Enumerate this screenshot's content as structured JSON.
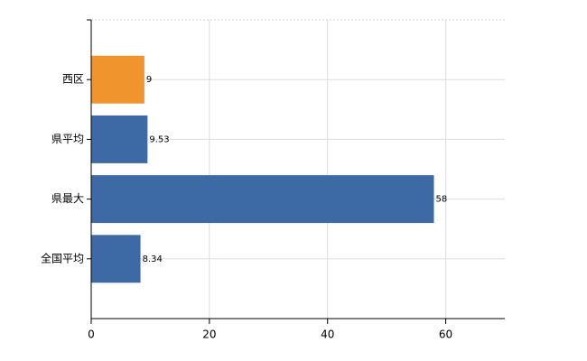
{
  "chart_data": {
    "type": "hbar",
    "categories": [
      "西区",
      "県平均",
      "県最大",
      "全国平均"
    ],
    "values": [
      9,
      9.53,
      58,
      8.34
    ],
    "colors": [
      "#f0952e",
      "#3d69a5",
      "#3d69a5",
      "#3d69a5"
    ],
    "xlim": [
      0,
      70
    ],
    "xticks": [
      0,
      20,
      40,
      60
    ],
    "grid": true
  }
}
